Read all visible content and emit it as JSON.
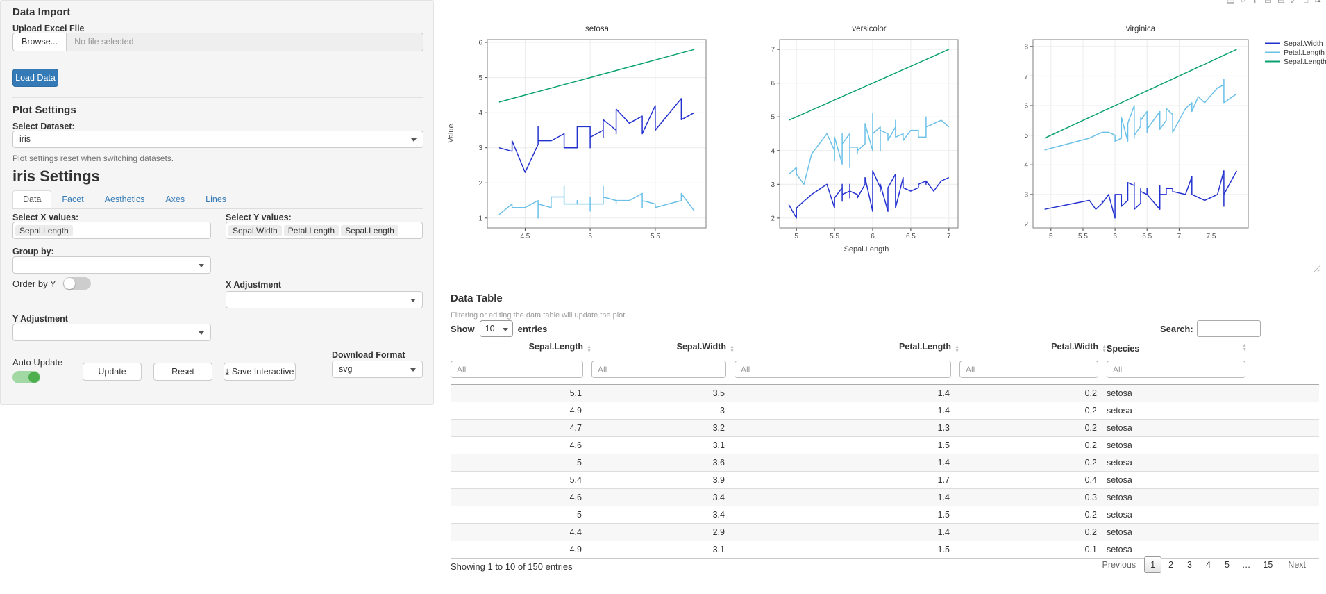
{
  "icons": {
    "sort_asc": "▲",
    "sort_desc": "▼",
    "download": "⤓"
  },
  "sidebar": {
    "data_import": {
      "heading": "Data Import",
      "upload_label": "Upload Excel File",
      "browse_label": "Browse...",
      "no_file_text": "No file selected",
      "load_button": "Load Data"
    },
    "plot_settings": {
      "heading": "Plot Settings",
      "dataset_label": "Select Dataset:",
      "dataset_value": "iris",
      "reset_note": "Plot settings reset when switching datasets."
    },
    "settings": {
      "heading": "iris Settings",
      "tabs": [
        {
          "label": "Data",
          "active": true
        },
        {
          "label": "Facet",
          "active": false
        },
        {
          "label": "Aesthetics",
          "active": false
        },
        {
          "label": "Axes",
          "active": false
        },
        {
          "label": "Lines",
          "active": false
        }
      ],
      "select_x_label": "Select X values:",
      "x_tags": [
        "Sepal.Length"
      ],
      "select_y_label": "Select Y values:",
      "y_tags": [
        "Sepal.Width",
        "Petal.Length",
        "Sepal.Length"
      ],
      "group_by_label": "Group by:",
      "order_by_label": "Order by Y",
      "x_adjust_label": "X Adjustment",
      "y_adjust_label": "Y Adjustment",
      "auto_update_label": "Auto Update",
      "update_button": "Update",
      "reset_button": "Reset",
      "save_button": "Save Interactive",
      "download_format_label": "Download Format",
      "download_format_value": "svg",
      "toggles": {
        "order_by_y": "off",
        "auto_update": "on"
      }
    }
  },
  "modebar": {
    "glyphs": [
      "▤",
      "⌕",
      "✛",
      "⊞",
      "⊟",
      "⤢",
      "⌂",
      "≋"
    ],
    "names": [
      "camera-icon",
      "zoom-icon",
      "pan-icon",
      "zoom-in-icon",
      "zoom-out-icon",
      "autoscale-icon",
      "reset-axes-icon",
      "plotly-logo-icon"
    ]
  },
  "chart_data": {
    "type": "line",
    "xlabel": "Sepal.Length",
    "ylabel": "Value",
    "grid": true,
    "legend_position": "top-right",
    "series": [
      {
        "name": "Sepal.Width",
        "color": "#2332cf"
      },
      {
        "name": "Petal.Length",
        "color": "#6bc0e8"
      },
      {
        "name": "Sepal.Length",
        "color": "#0aa170"
      }
    ],
    "panels": [
      {
        "title": "setosa",
        "xlim": [
          4.21,
          5.89
        ],
        "ylim": [
          0.72,
          6.08
        ],
        "xticks": [
          4.5,
          5,
          5.5
        ],
        "yticks": [
          1,
          2,
          3,
          4,
          5,
          6
        ],
        "x": [
          4.3,
          4.4,
          4.4,
          4.4,
          4.5,
          4.6,
          4.6,
          4.6,
          4.6,
          4.7,
          4.7,
          4.8,
          4.8,
          4.8,
          4.8,
          4.8,
          4.9,
          4.9,
          4.9,
          4.9,
          5.0,
          5.0,
          5.0,
          5.0,
          5.0,
          5.0,
          5.0,
          5.0,
          5.1,
          5.1,
          5.1,
          5.1,
          5.1,
          5.1,
          5.1,
          5.1,
          5.2,
          5.2,
          5.2,
          5.3,
          5.4,
          5.4,
          5.4,
          5.4,
          5.4,
          5.5,
          5.5,
          5.7,
          5.7,
          5.8
        ],
        "series": {
          "Sepal.Width": [
            3.0,
            2.9,
            3.0,
            3.2,
            2.3,
            3.1,
            3.4,
            3.6,
            3.2,
            3.2,
            3.2,
            3.4,
            3.0,
            3.4,
            3.1,
            3.0,
            3.0,
            3.1,
            3.1,
            3.6,
            3.6,
            3.4,
            3.0,
            3.4,
            3.2,
            3.5,
            3.5,
            3.3,
            3.5,
            3.5,
            3.8,
            3.7,
            3.3,
            3.4,
            3.8,
            3.8,
            3.5,
            3.4,
            4.1,
            3.7,
            3.9,
            3.7,
            3.9,
            3.4,
            3.4,
            4.2,
            3.5,
            4.4,
            3.8,
            4.0
          ],
          "Petal.Length": [
            1.1,
            1.4,
            1.3,
            1.3,
            1.3,
            1.5,
            1.4,
            1.0,
            1.4,
            1.3,
            1.6,
            1.6,
            1.4,
            1.9,
            1.6,
            1.4,
            1.4,
            1.5,
            1.5,
            1.4,
            1.4,
            1.5,
            1.6,
            1.6,
            1.2,
            1.3,
            1.6,
            1.4,
            1.4,
            1.4,
            1.5,
            1.5,
            1.7,
            1.5,
            1.9,
            1.6,
            1.5,
            1.4,
            1.5,
            1.5,
            1.7,
            1.5,
            1.3,
            1.7,
            1.5,
            1.4,
            1.3,
            1.5,
            1.7,
            1.2
          ],
          "Sepal.Length": [
            4.3,
            4.4,
            4.4,
            4.4,
            4.5,
            4.6,
            4.6,
            4.6,
            4.6,
            4.7,
            4.7,
            4.8,
            4.8,
            4.8,
            4.8,
            4.8,
            4.9,
            4.9,
            4.9,
            4.9,
            5.0,
            5.0,
            5.0,
            5.0,
            5.0,
            5.0,
            5.0,
            5.0,
            5.1,
            5.1,
            5.1,
            5.1,
            5.1,
            5.1,
            5.1,
            5.1,
            5.2,
            5.2,
            5.2,
            5.3,
            5.4,
            5.4,
            5.4,
            5.4,
            5.4,
            5.5,
            5.5,
            5.7,
            5.7,
            5.8
          ]
        }
      },
      {
        "title": "versicolor",
        "xlim": [
          4.78,
          7.12
        ],
        "ylim": [
          1.71,
          7.29
        ],
        "xticks": [
          5,
          5.5,
          6,
          6.5,
          7
        ],
        "yticks": [
          2,
          3,
          4,
          5,
          6,
          7
        ],
        "x": [
          4.9,
          5.0,
          5.0,
          5.1,
          5.2,
          5.4,
          5.5,
          5.5,
          5.5,
          5.5,
          5.5,
          5.6,
          5.6,
          5.6,
          5.6,
          5.6,
          5.7,
          5.7,
          5.7,
          5.7,
          5.7,
          5.8,
          5.8,
          5.8,
          5.9,
          5.9,
          6.0,
          6.0,
          6.0,
          6.0,
          6.1,
          6.1,
          6.1,
          6.1,
          6.2,
          6.2,
          6.3,
          6.3,
          6.3,
          6.4,
          6.4,
          6.5,
          6.6,
          6.6,
          6.7,
          6.7,
          6.7,
          6.8,
          6.9,
          7.0
        ],
        "series": {
          "Sepal.Width": [
            2.4,
            2.0,
            2.3,
            2.5,
            2.7,
            3.0,
            2.3,
            2.4,
            2.4,
            2.5,
            2.6,
            2.9,
            3.0,
            2.5,
            3.0,
            2.7,
            2.8,
            2.6,
            3.0,
            2.9,
            2.8,
            2.7,
            2.7,
            2.6,
            3.0,
            3.2,
            2.2,
            2.9,
            2.7,
            3.4,
            2.9,
            2.8,
            2.8,
            3.0,
            2.2,
            2.9,
            3.3,
            2.5,
            2.3,
            3.2,
            2.9,
            2.8,
            2.9,
            3.0,
            3.1,
            3.0,
            3.1,
            2.8,
            3.1,
            3.2
          ],
          "Petal.Length": [
            3.3,
            3.5,
            3.3,
            3.0,
            3.9,
            4.5,
            4.0,
            3.8,
            3.7,
            4.0,
            4.4,
            3.6,
            4.5,
            3.9,
            4.1,
            4.2,
            4.5,
            3.5,
            4.2,
            4.2,
            4.1,
            4.1,
            3.9,
            4.0,
            4.2,
            4.8,
            4.0,
            4.5,
            5.1,
            4.5,
            4.7,
            4.0,
            4.7,
            4.6,
            4.5,
            4.3,
            4.7,
            4.9,
            4.4,
            4.5,
            4.3,
            4.6,
            4.6,
            4.4,
            4.4,
            5.0,
            4.7,
            4.8,
            4.9,
            4.7
          ],
          "Sepal.Length": [
            4.9,
            5.0,
            5.0,
            5.1,
            5.2,
            5.4,
            5.5,
            5.5,
            5.5,
            5.5,
            5.5,
            5.6,
            5.6,
            5.6,
            5.6,
            5.6,
            5.7,
            5.7,
            5.7,
            5.7,
            5.7,
            5.8,
            5.8,
            5.8,
            5.9,
            5.9,
            6.0,
            6.0,
            6.0,
            6.0,
            6.1,
            6.1,
            6.1,
            6.1,
            6.2,
            6.2,
            6.3,
            6.3,
            6.3,
            6.4,
            6.4,
            6.5,
            6.6,
            6.6,
            6.7,
            6.7,
            6.7,
            6.8,
            6.9,
            7.0
          ]
        }
      },
      {
        "title": "virginica",
        "xlim": [
          4.72,
          8.08
        ],
        "ylim": [
          1.87,
          8.23
        ],
        "xticks": [
          5,
          5.5,
          6,
          6.5,
          7,
          7.5
        ],
        "yticks": [
          2,
          3,
          4,
          5,
          6,
          7,
          8
        ],
        "x": [
          4.9,
          5.6,
          5.7,
          5.8,
          5.8,
          5.8,
          5.9,
          6.0,
          6.0,
          6.1,
          6.1,
          6.2,
          6.2,
          6.3,
          6.3,
          6.3,
          6.3,
          6.3,
          6.3,
          6.4,
          6.4,
          6.4,
          6.4,
          6.4,
          6.5,
          6.5,
          6.5,
          6.5,
          6.7,
          6.7,
          6.7,
          6.7,
          6.7,
          6.8,
          6.8,
          6.9,
          6.9,
          6.9,
          7.1,
          7.2,
          7.2,
          7.2,
          7.3,
          7.4,
          7.6,
          7.7,
          7.7,
          7.7,
          7.7,
          7.9
        ],
        "series": {
          "Sepal.Width": [
            2.5,
            2.8,
            2.5,
            2.7,
            2.8,
            2.7,
            3.0,
            2.2,
            3.0,
            3.0,
            2.6,
            2.8,
            3.4,
            3.3,
            2.9,
            2.7,
            2.8,
            3.4,
            2.5,
            2.7,
            3.2,
            2.8,
            2.8,
            3.1,
            3.0,
            3.2,
            3.0,
            3.0,
            2.5,
            3.3,
            3.1,
            3.3,
            3.0,
            3.0,
            3.2,
            3.2,
            3.1,
            3.1,
            3.0,
            3.6,
            3.2,
            3.0,
            2.9,
            2.8,
            3.0,
            3.8,
            2.6,
            2.8,
            3.0,
            3.8
          ],
          "Petal.Length": [
            4.5,
            4.9,
            5.0,
            5.1,
            5.1,
            5.1,
            5.1,
            5.0,
            4.8,
            4.9,
            5.6,
            4.8,
            5.4,
            6.0,
            5.6,
            4.9,
            5.1,
            5.6,
            5.0,
            5.3,
            5.3,
            5.6,
            5.6,
            5.5,
            5.8,
            5.1,
            5.5,
            5.2,
            5.8,
            5.7,
            5.6,
            5.7,
            5.2,
            5.5,
            5.9,
            5.7,
            5.4,
            5.1,
            5.9,
            6.1,
            6.0,
            5.8,
            6.3,
            6.1,
            6.6,
            6.7,
            6.9,
            6.7,
            6.1,
            6.4
          ],
          "Sepal.Length": [
            4.9,
            5.6,
            5.7,
            5.8,
            5.8,
            5.8,
            5.9,
            6.0,
            6.0,
            6.1,
            6.1,
            6.2,
            6.2,
            6.3,
            6.3,
            6.3,
            6.3,
            6.3,
            6.3,
            6.4,
            6.4,
            6.4,
            6.4,
            6.4,
            6.5,
            6.5,
            6.5,
            6.5,
            6.7,
            6.7,
            6.7,
            6.7,
            6.7,
            6.8,
            6.8,
            6.9,
            6.9,
            6.9,
            7.1,
            7.2,
            7.2,
            7.2,
            7.3,
            7.4,
            7.6,
            7.7,
            7.7,
            7.7,
            7.7,
            7.9
          ]
        }
      }
    ]
  },
  "table": {
    "heading": "Data Table",
    "note": "Filtering or editing the data table will update the plot.",
    "show_label": "Show",
    "page_length": "10",
    "entries_label": "entries",
    "search_label": "Search:",
    "headers": [
      "Sepal.Length",
      "Sepal.Width",
      "Petal.Length",
      "Petal.Width",
      "Species"
    ],
    "filter_placeholder": "All",
    "rows": [
      [
        "5.1",
        "3.5",
        "1.4",
        "0.2",
        "setosa"
      ],
      [
        "4.9",
        "3",
        "1.4",
        "0.2",
        "setosa"
      ],
      [
        "4.7",
        "3.2",
        "1.3",
        "0.2",
        "setosa"
      ],
      [
        "4.6",
        "3.1",
        "1.5",
        "0.2",
        "setosa"
      ],
      [
        "5",
        "3.6",
        "1.4",
        "0.2",
        "setosa"
      ],
      [
        "5.4",
        "3.9",
        "1.7",
        "0.4",
        "setosa"
      ],
      [
        "4.6",
        "3.4",
        "1.4",
        "0.3",
        "setosa"
      ],
      [
        "5",
        "3.4",
        "1.5",
        "0.2",
        "setosa"
      ],
      [
        "4.4",
        "2.9",
        "1.4",
        "0.2",
        "setosa"
      ],
      [
        "4.9",
        "3.1",
        "1.5",
        "0.1",
        "setosa"
      ]
    ],
    "info": "Showing 1 to 10 of 150 entries",
    "pagination": {
      "previous": "Previous",
      "pages": [
        "1",
        "2",
        "3",
        "4",
        "5",
        "…",
        "15"
      ],
      "current": "1",
      "next": "Next"
    }
  }
}
